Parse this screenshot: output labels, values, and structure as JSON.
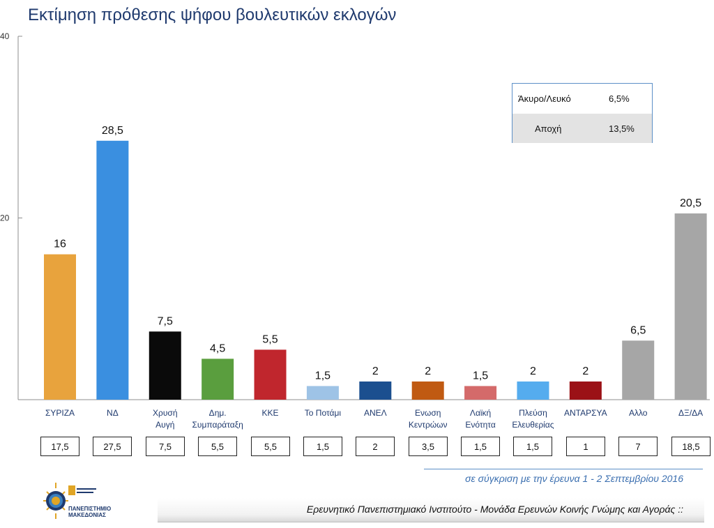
{
  "title": "Εκτίμηση πρόθεσης ψήφου βουλευτικών εκλογών",
  "chart_data": {
    "type": "bar",
    "title": "Εκτίμηση πρόθεσης ψήφου βουλευτικών εκλογών",
    "ylim": [
      0,
      40
    ],
    "yticks": [
      20,
      40
    ],
    "grid": false,
    "categories": [
      [
        "ΣΥΡΙΖΑ"
      ],
      [
        "ΝΔ"
      ],
      [
        "Χρυσή",
        "Αυγή"
      ],
      [
        "Δημ.",
        "Συμπαράταξη"
      ],
      [
        "ΚΚΕ"
      ],
      [
        "Το Ποτάμι"
      ],
      [
        "ΑΝΕΛ"
      ],
      [
        "Ενωση",
        "Κεντρώων"
      ],
      [
        "Λαϊκή",
        "Ενότητα"
      ],
      [
        "Πλεύση",
        "Ελευθερίας"
      ],
      [
        "ΑΝΤΑΡΣΥΑ"
      ],
      [
        "Αλλο"
      ],
      [
        "ΔΞ/ΔΑ"
      ]
    ],
    "values": [
      16,
      28.5,
      7.5,
      4.5,
      5.5,
      1.5,
      2,
      2,
      1.5,
      2,
      2,
      6.5,
      20.5
    ],
    "value_labels": [
      "16",
      "28,5",
      "7,5",
      "4,5",
      "5,5",
      "1,5",
      "2",
      "2",
      "1,5",
      "2",
      "2",
      "6,5",
      "20,5"
    ],
    "colors": [
      "#e8a33d",
      "#3a8fe0",
      "#0a0a0a",
      "#5a9e3e",
      "#c0262d",
      "#9ec3e6",
      "#1b4f8f",
      "#c05a12",
      "#d46a6a",
      "#55acee",
      "#9b1116",
      "#a6a6a6",
      "#a6a6a6"
    ],
    "comparison": {
      "labels": [
        "17,5",
        "27,5",
        "7,5",
        "5,5",
        "5,5",
        "1,5",
        "2",
        "3,5",
        "1,5",
        "1,5",
        "1",
        "7",
        "18,5"
      ]
    }
  },
  "side_table": {
    "rows": [
      {
        "label": "Άκυρο/Λευκό",
        "value": "6,5%"
      },
      {
        "label": "Αποχή",
        "value": "13,5%"
      }
    ]
  },
  "comparison_note": "σε σύγκριση με την έρευνα 1 - 2 Σεπτεμβρίου 2016",
  "logo": {
    "line1": "ΠΑΝΕΠΙΣΤΗΜΙΟ",
    "line2": "ΜΑΚΕΔΟΝΙΑΣ"
  },
  "footer": "Ερευνητικό Πανεπιστημιακό Ινστιτούτο - Μονάδα Ερευνών Κοινής Γνώμης και Αγοράς ::"
}
